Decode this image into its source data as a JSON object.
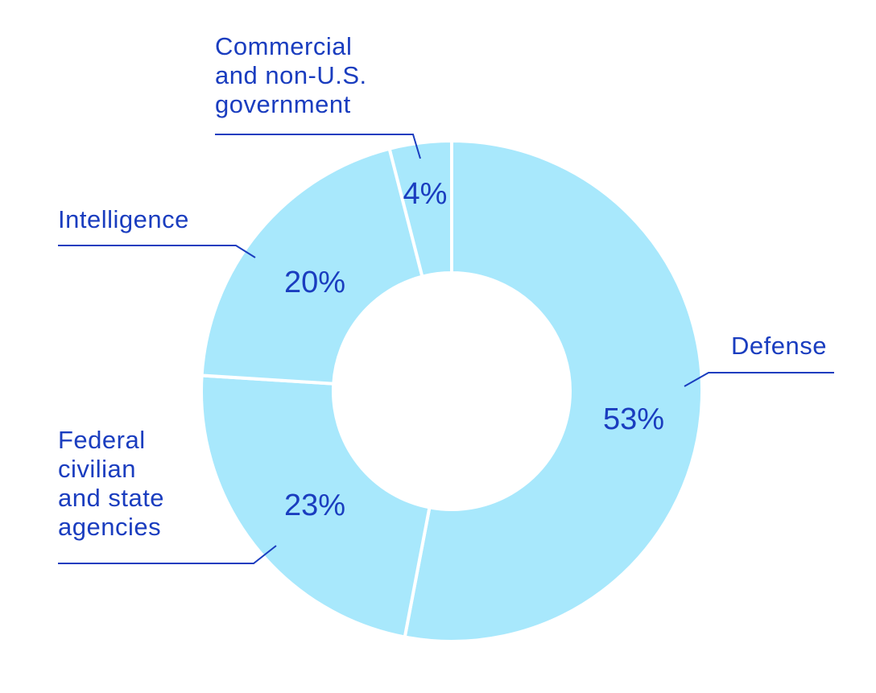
{
  "chart_data": {
    "type": "pie",
    "style": "donut",
    "title": "",
    "categories": [
      "Defense",
      "Federal civilian and state agencies",
      "Intelligence",
      "Commercial and non-U.S. government"
    ],
    "values": [
      53,
      23,
      20,
      4
    ],
    "value_labels": [
      "53%",
      "23%",
      "20%",
      "4%"
    ],
    "category_lines": [
      [
        "Defense"
      ],
      [
        "Federal",
        "civilian",
        "and state",
        "agencies"
      ],
      [
        "Intelligence"
      ],
      [
        "Commercial",
        "and non-U.S.",
        "government"
      ]
    ],
    "unit": "%",
    "colors": {
      "slice": "#a8e8fc",
      "separator": "#ffffff",
      "text": "#1a3dbf"
    }
  }
}
